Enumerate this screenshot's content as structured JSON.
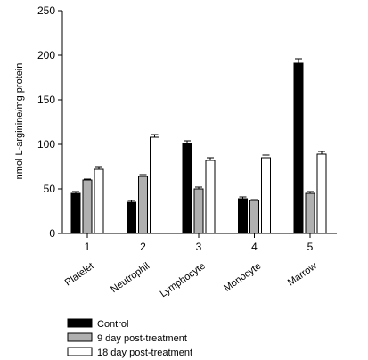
{
  "chart_data": {
    "type": "bar",
    "x_ticks": [
      "1",
      "2",
      "3",
      "4",
      "5"
    ],
    "categories": [
      "Platelet",
      "Neutrophil",
      "Lymphocyte",
      "Monocyte",
      "Marrow"
    ],
    "ylabel": "nmol L-arginine/mg protein",
    "xlabel": "",
    "title": "",
    "ylim": [
      0,
      250
    ],
    "yticks": [
      0,
      50,
      100,
      150,
      200,
      250
    ],
    "grid": false,
    "legend_position": "bottom-left",
    "error_bars": true,
    "series": [
      {
        "name": "Control",
        "values": [
          45,
          35,
          101,
          39,
          191
        ],
        "errors": [
          2,
          2,
          3,
          2,
          5
        ],
        "color": "#000000"
      },
      {
        "name": "9 day post-treatment",
        "values": [
          60,
          64,
          50,
          37,
          45
        ],
        "errors": [
          1,
          2,
          2,
          1,
          2
        ],
        "color": "#b0b0b0"
      },
      {
        "name": "18 day post-treatment",
        "values": [
          72,
          108,
          82,
          85,
          89
        ],
        "errors": [
          3,
          3,
          3,
          3,
          3
        ],
        "color": "#ffffff"
      }
    ]
  }
}
